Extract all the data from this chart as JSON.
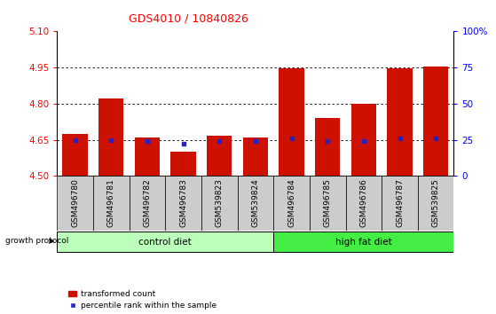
{
  "title": "GDS4010 / 10840826",
  "samples": [
    "GSM496780",
    "GSM496781",
    "GSM496782",
    "GSM496783",
    "GSM539823",
    "GSM539824",
    "GSM496784",
    "GSM496785",
    "GSM496786",
    "GSM496787",
    "GSM539825"
  ],
  "bar_values": [
    4.675,
    4.82,
    4.66,
    4.6,
    4.665,
    4.66,
    4.945,
    4.74,
    4.8,
    4.945,
    4.955
  ],
  "blue_values": [
    4.648,
    4.65,
    4.645,
    4.635,
    4.645,
    4.645,
    4.655,
    4.645,
    4.645,
    4.655,
    4.655
  ],
  "ylim": [
    4.5,
    5.1
  ],
  "yticks_left": [
    4.5,
    4.65,
    4.8,
    4.95,
    5.1
  ],
  "yticks_right": [
    0,
    25,
    50,
    75,
    100
  ],
  "bar_color": "#cc1100",
  "blue_color": "#2222cc",
  "grid_ticks": [
    4.65,
    4.8,
    4.95
  ],
  "control_color": "#bbffbb",
  "highfat_color": "#44ee44",
  "label_bg_color": "#cccccc",
  "bar_width": 0.7,
  "base_value": 4.5,
  "n_control": 6,
  "n_total": 11
}
